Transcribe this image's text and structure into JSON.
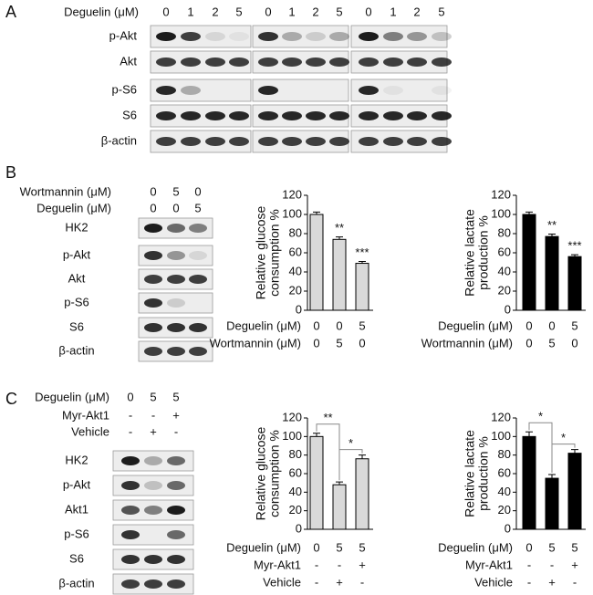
{
  "panels": {
    "A": {
      "label": "A",
      "conditions": [
        {
          "name": "Deguelin (μM)",
          "values": [
            "0",
            "1",
            "2",
            "5",
            "0",
            "1",
            "2",
            "5",
            "0",
            "1",
            "2",
            "5"
          ]
        }
      ],
      "rows": [
        "p-Akt",
        "Akt",
        "p-S6",
        "S6",
        "β-actin"
      ]
    },
    "B": {
      "label": "B",
      "conditions": [
        {
          "name": "Wortmannin (μM)",
          "values": [
            "0",
            "5",
            "0"
          ]
        },
        {
          "name": "Deguelin (μM)",
          "values": [
            "0",
            "0",
            "5"
          ]
        }
      ],
      "rows": [
        "HK2",
        "p-Akt",
        "Akt",
        "p-S6",
        "S6",
        "β-actin"
      ]
    },
    "C": {
      "label": "C",
      "conditions": [
        {
          "name": "Deguelin (μM)",
          "values": [
            "0",
            "5",
            "5"
          ]
        },
        {
          "name": "Myr-Akt1",
          "values": [
            "-",
            "-",
            "+"
          ]
        },
        {
          "name": "Vehicle",
          "values": [
            "-",
            "+",
            "-"
          ]
        }
      ],
      "rows": [
        "HK2",
        "p-Akt",
        "Akt1",
        "p-S6",
        "S6",
        "β-actin"
      ]
    }
  },
  "chart_data": [
    {
      "type": "bar",
      "ylabel": [
        "Relative glucose",
        "consumption %"
      ],
      "values": [
        100,
        74,
        49
      ],
      "errors": [
        2.5,
        2.5,
        2
      ],
      "color": "#d9d9d9",
      "ylim": [
        0,
        120
      ],
      "yticks": [
        0,
        20,
        40,
        60,
        80,
        100,
        120
      ],
      "annotations": [
        null,
        "**",
        "***"
      ],
      "conditions": [
        {
          "name": "Deguelin (μM)",
          "values": [
            "0",
            "0",
            "5"
          ]
        },
        {
          "name": "Wortmannin (μM)",
          "values": [
            "0",
            "5",
            "0"
          ]
        }
      ]
    },
    {
      "type": "bar",
      "ylabel": [
        "Relative lactate",
        "production %"
      ],
      "values": [
        100,
        77,
        56
      ],
      "errors": [
        2.5,
        2.5,
        2
      ],
      "color": "#000000",
      "ylim": [
        0,
        120
      ],
      "yticks": [
        0,
        20,
        40,
        60,
        80,
        100,
        120
      ],
      "annotations": [
        null,
        "**",
        "***"
      ],
      "conditions": [
        {
          "name": "Deguelin (μM)",
          "values": [
            "0",
            "0",
            "5"
          ]
        },
        {
          "name": "Wortmannin (μM)",
          "values": [
            "0",
            "5",
            "0"
          ]
        }
      ]
    },
    {
      "type": "bar",
      "ylabel": [
        "Relative glucose",
        "consumption %"
      ],
      "values": [
        100,
        48,
        76
      ],
      "errors": [
        3.5,
        3,
        4
      ],
      "color": "#d9d9d9",
      "ylim": [
        0,
        120
      ],
      "yticks": [
        0,
        20,
        40,
        60,
        80,
        100,
        120
      ],
      "comparisons": [
        {
          "between": [
            0,
            1
          ],
          "label": "**"
        },
        {
          "between": [
            1,
            2
          ],
          "label": "*"
        }
      ],
      "conditions": [
        {
          "name": "Deguelin (μM)",
          "values": [
            "0",
            "5",
            "5"
          ]
        },
        {
          "name": "Myr-Akt1",
          "values": [
            "-",
            "-",
            "+"
          ]
        },
        {
          "name": "Vehicle",
          "values": [
            "-",
            "+",
            "-"
          ]
        }
      ]
    },
    {
      "type": "bar",
      "ylabel": [
        "Relative lactate",
        "production %"
      ],
      "values": [
        100,
        55,
        82
      ],
      "errors": [
        5,
        4,
        4
      ],
      "color": "#000000",
      "ylim": [
        0,
        120
      ],
      "yticks": [
        0,
        20,
        40,
        60,
        80,
        100,
        120
      ],
      "comparisons": [
        {
          "between": [
            0,
            1
          ],
          "label": "*"
        },
        {
          "between": [
            1,
            2
          ],
          "label": "*"
        }
      ],
      "conditions": [
        {
          "name": "Deguelin (μM)",
          "values": [
            "0",
            "5",
            "5"
          ]
        },
        {
          "name": "Myr-Akt1",
          "values": [
            "-",
            "-",
            "+"
          ]
        },
        {
          "name": "Vehicle",
          "values": [
            "-",
            "+",
            "-"
          ]
        }
      ]
    }
  ]
}
